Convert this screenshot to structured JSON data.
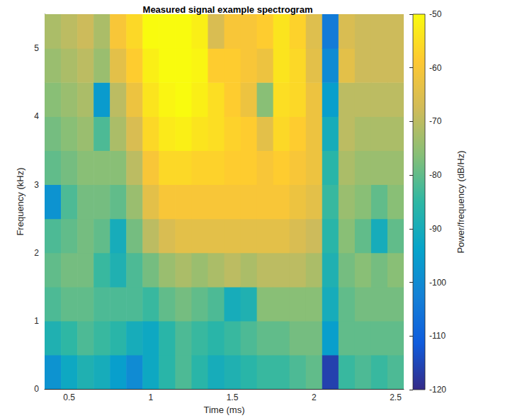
{
  "chart_data": {
    "type": "heatmap",
    "title": "Measured signal example spectrogram",
    "x_label": "Time (ms)",
    "y_label": "Frequency (kHz)",
    "colorbar_label": "Power/frequency (dB/Hz)",
    "xlim": [
      0.35,
      2.55
    ],
    "xticks": [
      0.5,
      1,
      1.5,
      2,
      2.5
    ],
    "ylim": [
      0,
      5.5
    ],
    "yticks": [
      0,
      1,
      2,
      3,
      4,
      5
    ],
    "clim": [
      -120,
      -50
    ],
    "cticks": [
      -120,
      -110,
      -100,
      -90,
      -80,
      -70,
      -60,
      -50
    ],
    "x": [
      0.4,
      0.5,
      0.6,
      0.7,
      0.8,
      0.9,
      1.0,
      1.1,
      1.2,
      1.3,
      1.4,
      1.5,
      1.6,
      1.7,
      1.8,
      1.9,
      2.0,
      2.1,
      2.2,
      2.3,
      2.4,
      2.5
    ],
    "y": [
      0.25,
      0.75,
      1.25,
      1.75,
      2.25,
      2.75,
      3.25,
      3.75,
      4.25,
      4.75,
      5.25
    ],
    "values": [
      [
        -98,
        -88,
        -82,
        -80,
        -82,
        -98,
        -80,
        -78,
        -76,
        -74,
        -72
      ],
      [
        -92,
        -85,
        -80,
        -78,
        -80,
        -82,
        -78,
        -76,
        -74,
        -72,
        -70
      ],
      [
        -88,
        -82,
        -80,
        -78,
        -78,
        -78,
        -76,
        -74,
        -72,
        -70,
        -68
      ],
      [
        -90,
        -84,
        -82,
        -84,
        -80,
        -78,
        -76,
        -82,
        -96,
        -74,
        -72
      ],
      [
        -95,
        -86,
        -82,
        -88,
        -90,
        -80,
        -76,
        -72,
        -70,
        -64,
        -60
      ],
      [
        -100,
        -90,
        -82,
        -82,
        -78,
        -74,
        -70,
        -66,
        -62,
        -58,
        -56
      ],
      [
        -92,
        -92,
        -84,
        -78,
        -70,
        -64,
        -60,
        -56,
        -54,
        -52,
        -50
      ],
      [
        -86,
        -86,
        -80,
        -74,
        -66,
        -60,
        -56,
        -53,
        -51,
        -50,
        -50
      ],
      [
        -82,
        -82,
        -78,
        -72,
        -64,
        -60,
        -56,
        -52,
        -50,
        -50,
        -50
      ],
      [
        -86,
        -84,
        -80,
        -74,
        -64,
        -60,
        -57,
        -54,
        -52,
        -51,
        -52
      ],
      [
        -90,
        -86,
        -82,
        -72,
        -64,
        -60,
        -57,
        -55,
        -55,
        -58,
        -66
      ],
      [
        -88,
        -84,
        -90,
        -70,
        -64,
        -60,
        -58,
        -57,
        -58,
        -58,
        -60
      ],
      [
        -86,
        -82,
        -88,
        -72,
        -64,
        -60,
        -58,
        -58,
        -62,
        -60,
        -60
      ],
      [
        -84,
        -80,
        -76,
        -70,
        -64,
        -60,
        -60,
        -64,
        -76,
        -62,
        -58
      ],
      [
        -84,
        -80,
        -76,
        -70,
        -64,
        -60,
        -58,
        -56,
        -55,
        -54,
        -54
      ],
      [
        -82,
        -78,
        -76,
        -70,
        -66,
        -62,
        -60,
        -58,
        -56,
        -56,
        -57
      ],
      [
        -80,
        -78,
        -76,
        -72,
        -68,
        -64,
        -62,
        -62,
        -62,
        -64,
        -65
      ],
      [
        -116,
        -95,
        -90,
        -88,
        -86,
        -84,
        -86,
        -90,
        -95,
        -100,
        -104
      ],
      [
        -84,
        -80,
        -80,
        -78,
        -76,
        -74,
        -72,
        -70,
        -70,
        -64,
        -66
      ],
      [
        -82,
        -80,
        -78,
        -76,
        -80,
        -76,
        -74,
        -72,
        -70,
        -68,
        -68
      ],
      [
        -84,
        -80,
        -78,
        -78,
        -90,
        -80,
        -74,
        -72,
        -70,
        -68,
        -68
      ],
      [
        -82,
        -80,
        -78,
        -76,
        -80,
        -76,
        -74,
        -72,
        -70,
        -68,
        -68
      ]
    ]
  }
}
